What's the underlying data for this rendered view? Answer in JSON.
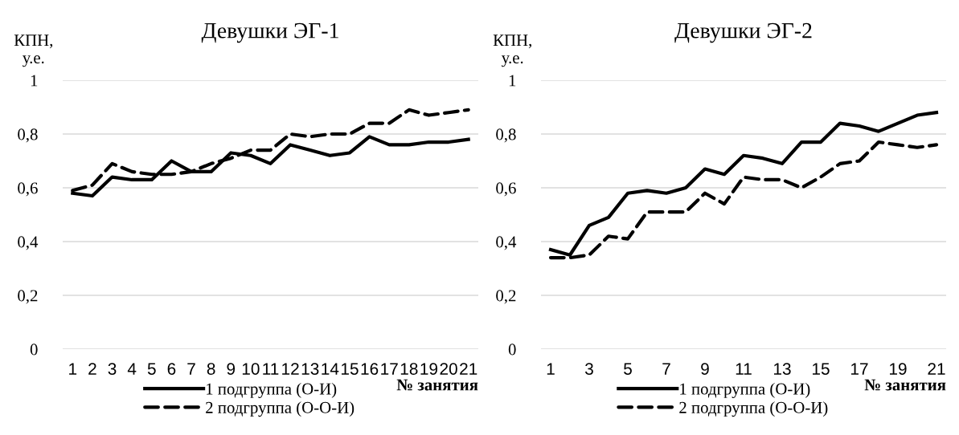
{
  "chart_data": [
    {
      "type": "line",
      "title": "Девушки ЭГ-1",
      "ylabel": "КПН,\nу.е.",
      "xlabel": "№ занятия",
      "categories": [
        "1",
        "2",
        "3",
        "4",
        "5",
        "6",
        "7",
        "8",
        "9",
        "10",
        "11",
        "12",
        "13",
        "14",
        "15",
        "16",
        "17",
        "18",
        "19",
        "20",
        "21"
      ],
      "series": [
        {
          "name": "1 подгруппа (О-И)",
          "color": "#000000",
          "line_style": "solid",
          "values": [
            0.58,
            0.57,
            0.64,
            0.63,
            0.63,
            0.7,
            0.66,
            0.66,
            0.73,
            0.72,
            0.69,
            0.76,
            0.74,
            0.72,
            0.73,
            0.79,
            0.76,
            0.76,
            0.77,
            0.77,
            0.78
          ]
        },
        {
          "name": "2 подгруппа (О-О-И)",
          "color": "#000000",
          "line_style": "dashed",
          "values": [
            0.59,
            0.61,
            0.69,
            0.66,
            0.65,
            0.65,
            0.66,
            0.69,
            0.71,
            0.74,
            0.74,
            0.8,
            0.79,
            0.8,
            0.8,
            0.84,
            0.84,
            0.89,
            0.87,
            0.88,
            0.89
          ]
        }
      ],
      "ylim": [
        0,
        1
      ],
      "yticks": [
        0,
        {
          "value": 0.2,
          "label": "0,2"
        },
        {
          "value": 0.4,
          "label": "0,4"
        },
        {
          "value": 0.6,
          "label": "0,6"
        },
        {
          "value": 0.8,
          "label": "0,8"
        },
        1
      ],
      "grid": "y",
      "legend": "bottom",
      "marker": "none"
    },
    {
      "type": "line",
      "title": "Девушки ЭГ-2",
      "ylabel": "КПН,\nу.е.",
      "xlabel": "№ занятия",
      "categories": [
        "1",
        null,
        "3",
        null,
        "5",
        null,
        "7",
        null,
        "9",
        null,
        "11",
        null,
        "13",
        null,
        "15",
        null,
        "17",
        null,
        "19",
        null,
        "21"
      ],
      "series": [
        {
          "name": "1 подгруппа (О-И)",
          "color": "#000000",
          "line_style": "solid",
          "values": [
            0.37,
            0.35,
            0.46,
            0.49,
            0.58,
            0.59,
            0.58,
            0.6,
            0.67,
            0.65,
            0.72,
            0.71,
            0.69,
            0.77,
            0.77,
            0.84,
            0.83,
            0.81,
            0.84,
            0.87,
            0.88
          ]
        },
        {
          "name": "2 подгруппа (О-О-И)",
          "color": "#000000",
          "line_style": "dashed",
          "values": [
            0.34,
            0.34,
            0.35,
            0.42,
            0.41,
            0.51,
            0.51,
            0.51,
            0.58,
            0.54,
            0.64,
            0.63,
            0.63,
            0.6,
            0.64,
            0.69,
            0.7,
            0.77,
            0.76,
            0.75,
            0.76
          ]
        }
      ],
      "ylim": [
        0,
        1
      ],
      "yticks": [
        0,
        {
          "value": 0.2,
          "label": "0,2"
        },
        {
          "value": 0.4,
          "label": "0,4"
        },
        {
          "value": 0.6,
          "label": "0,6"
        },
        {
          "value": 0.8,
          "label": "0,8"
        },
        1
      ],
      "grid": "y",
      "legend": "bottom",
      "marker": "none"
    }
  ]
}
